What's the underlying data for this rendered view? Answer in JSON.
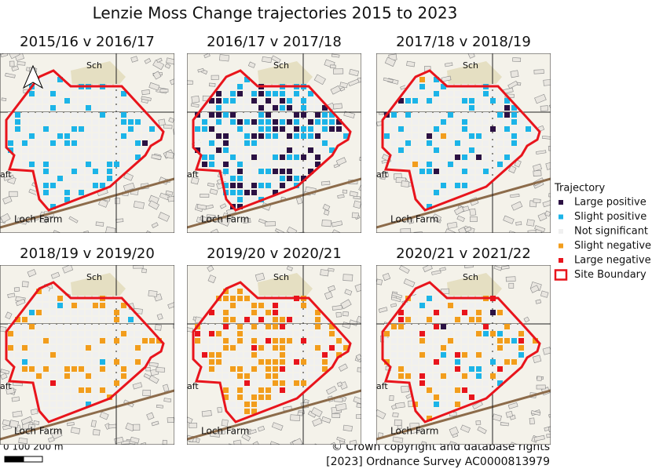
{
  "title": "Lenzie Moss Change trajectories 2015 to 2023",
  "panels": [
    {
      "title": "2015/16 v 2016/17"
    },
    {
      "title": "2016/17 v 2017/18"
    },
    {
      "title": "2017/18 v 2018/19"
    },
    {
      "title": "2018/19 v 2019/20"
    },
    {
      "title": "2019/20 v 2020/21"
    },
    {
      "title": "2020/21 v 2021/22"
    }
  ],
  "basemap_labels": {
    "school": "Sch",
    "farm": "Loch Farm",
    "edge": "aft"
  },
  "legend": {
    "title": "Trajectory",
    "items": [
      {
        "label": "Large positive",
        "color": "#2b1143"
      },
      {
        "label": "Slight positive",
        "color": "#1cb4e8"
      },
      {
        "label": "Not significant",
        "color": "#f0f0f0"
      },
      {
        "label": "Slight negative",
        "color": "#f29d1c"
      },
      {
        "label": "Large negative",
        "color": "#e8141c"
      },
      {
        "label": "Site Boundary",
        "color": "#e8141c"
      }
    ]
  },
  "scale_bar": {
    "label": "0   100 200 m"
  },
  "credits": [
    "© Crown copyright and database rights",
    "[2023] Ordnance Survey AC0000813979"
  ]
}
